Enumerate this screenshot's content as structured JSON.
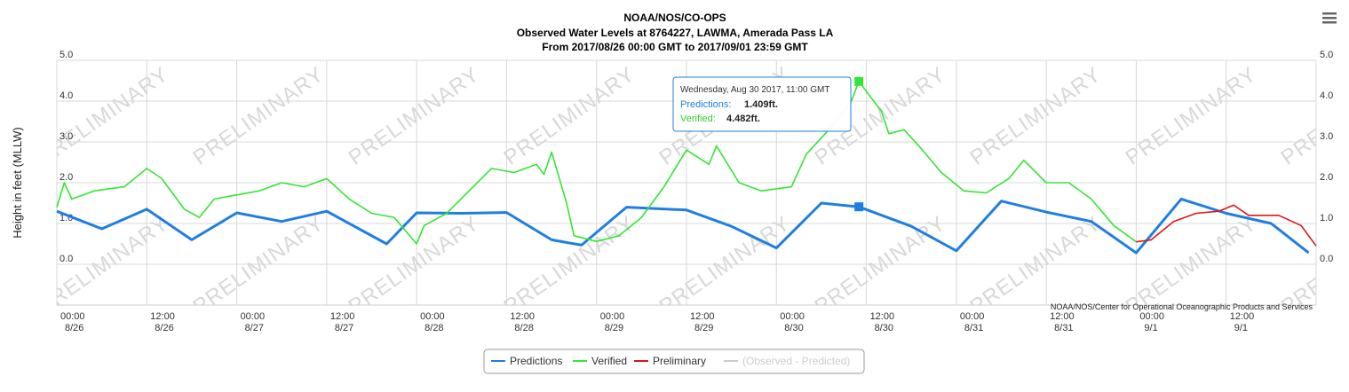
{
  "chart_data": {
    "type": "line",
    "title": [
      "NOAA/NOS/CO-OPS",
      "Observed Water Levels at 8764227, LAWMA, Amerada Pass LA",
      "From 2017/08/26 00:00 GMT to 2017/09/01 23:59 GMT"
    ],
    "ylabel": "Height in feet (MLLW)",
    "watermark": "PRELIMINARY",
    "credit": "NOAA/NOS/Center for Operational Oceanographic Products and Services",
    "xlim": [
      0,
      168
    ],
    "xticks": [
      {
        "value": 0,
        "label": [
          "00:00",
          "8/26"
        ]
      },
      {
        "value": 12,
        "label": [
          "12:00",
          "8/26"
        ]
      },
      {
        "value": 24,
        "label": [
          "00:00",
          "8/27"
        ]
      },
      {
        "value": 36,
        "label": [
          "12:00",
          "8/27"
        ]
      },
      {
        "value": 48,
        "label": [
          "00:00",
          "8/28"
        ]
      },
      {
        "value": 60,
        "label": [
          "12:00",
          "8/28"
        ]
      },
      {
        "value": 72,
        "label": [
          "00:00",
          "8/29"
        ]
      },
      {
        "value": 84,
        "label": [
          "12:00",
          "8/29"
        ]
      },
      {
        "value": 96,
        "label": [
          "00:00",
          "8/30"
        ]
      },
      {
        "value": 108,
        "label": [
          "12:00",
          "8/30"
        ]
      },
      {
        "value": 120,
        "label": [
          "00:00",
          "8/31"
        ]
      },
      {
        "value": 132,
        "label": [
          "12:00",
          "8/31"
        ]
      },
      {
        "value": 144,
        "label": [
          "00:00",
          "9/1"
        ]
      },
      {
        "value": 156,
        "label": [
          "12:00",
          "9/1"
        ]
      }
    ],
    "ylim": [
      -1,
      5
    ],
    "yticks": [
      {
        "value": 0,
        "label": "0.0"
      },
      {
        "value": 1,
        "label": "1.0"
      },
      {
        "value": 2,
        "label": "2.0"
      },
      {
        "value": 3,
        "label": "3.0"
      },
      {
        "value": 4,
        "label": "4.0"
      },
      {
        "value": 5,
        "label": "5.0"
      }
    ],
    "grid": true,
    "series": [
      {
        "name": "Predictions",
        "color": "#1f7fe0",
        "x": [
          0,
          6,
          12,
          18,
          24,
          30,
          36,
          44,
          48,
          54,
          60,
          66,
          70,
          76,
          84,
          90,
          96,
          102,
          107,
          114,
          120,
          126,
          132,
          138,
          144,
          150,
          156,
          162,
          167
        ],
        "values": [
          1.3,
          0.87,
          1.35,
          0.6,
          1.26,
          1.05,
          1.3,
          0.5,
          1.26,
          1.25,
          1.27,
          0.6,
          0.47,
          1.4,
          1.33,
          0.93,
          0.4,
          1.5,
          1.409,
          0.93,
          0.33,
          1.55,
          1.28,
          1.05,
          0.28,
          1.6,
          1.25,
          1.0,
          0.28
        ]
      },
      {
        "name": "Verified",
        "color": "#33e633",
        "x": [
          0,
          1,
          2,
          5,
          9,
          12,
          14,
          17,
          19,
          21,
          24,
          27,
          30,
          33,
          36,
          39,
          42,
          45,
          48,
          49,
          52,
          55,
          58,
          61,
          64,
          65,
          66,
          68,
          69,
          72,
          75,
          78,
          81,
          84,
          87,
          88,
          91,
          94,
          98,
          100,
          103,
          106,
          107,
          110,
          111,
          113,
          115,
          118,
          121,
          124,
          127,
          129,
          132,
          135,
          138,
          141,
          144
        ],
        "values": [
          1.4,
          2.0,
          1.6,
          1.8,
          1.9,
          2.35,
          2.1,
          1.35,
          1.15,
          1.6,
          1.7,
          1.8,
          2.0,
          1.9,
          2.1,
          1.6,
          1.25,
          1.15,
          0.5,
          0.95,
          1.25,
          1.8,
          2.35,
          2.25,
          2.45,
          2.2,
          2.75,
          1.5,
          0.7,
          0.56,
          0.7,
          1.15,
          1.9,
          2.8,
          2.45,
          2.9,
          2.0,
          1.8,
          1.9,
          2.7,
          3.3,
          4.0,
          4.482,
          3.75,
          3.2,
          3.3,
          2.9,
          2.25,
          1.8,
          1.75,
          2.1,
          2.55,
          2.0,
          2.0,
          1.6,
          0.95,
          0.55
        ]
      },
      {
        "name": "Preliminary",
        "color": "#e01515",
        "x": [
          144,
          146,
          149,
          152,
          155,
          157,
          159,
          163,
          166,
          168
        ],
        "values": [
          0.55,
          0.6,
          1.05,
          1.25,
          1.3,
          1.45,
          1.2,
          1.2,
          0.95,
          0.45
        ]
      },
      {
        "name": "(Observed - Predicted)",
        "color": "#cccccc",
        "visible": false,
        "x": [],
        "values": []
      }
    ],
    "tooltip": {
      "title": "Wednesday, Aug 30 2017, 11:00 GMT",
      "rows": [
        {
          "label": "Predictions:",
          "value_label": "1.409ft."
        },
        {
          "label": "Verified:",
          "value_label": "4.482ft."
        }
      ]
    }
  }
}
